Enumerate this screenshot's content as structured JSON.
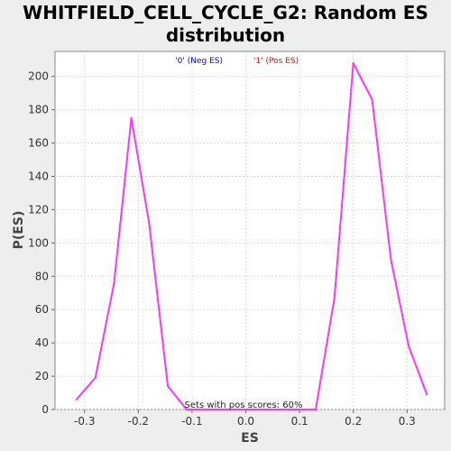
{
  "chart_data": {
    "type": "line",
    "title_line1": "WHITFIELD_CELL_CYCLE_G2: Random ES",
    "title_line2": "distribution",
    "xlabel": "ES",
    "ylabel": "P(ES)",
    "xlim": [
      -0.355,
      0.37
    ],
    "ylim": [
      0,
      215
    ],
    "x_ticks": [
      -0.3,
      -0.2,
      -0.1,
      0.0,
      0.1,
      0.2,
      0.3
    ],
    "x_tick_labels": [
      "-0.3",
      "-0.2",
      "-0.1",
      "0.0",
      "0.1",
      "0.2",
      "0.3"
    ],
    "y_ticks": [
      0,
      20,
      40,
      60,
      80,
      100,
      120,
      140,
      160,
      180,
      200
    ],
    "y_tick_labels": [
      "0",
      "20",
      "40",
      "60",
      "80",
      "100",
      "120",
      "140",
      "160",
      "180",
      "200"
    ],
    "grid": true,
    "legend": [
      {
        "label": "'0' (Neg ES)",
        "color": "#0000ff"
      },
      {
        "label": "'1' (Pos ES)",
        "color": "#ff0000"
      }
    ],
    "legend_placement": "top-center",
    "annotation": "Sets with pos scores: 60%",
    "series": [
      {
        "color": "#ff33ff",
        "x": [
          -0.315,
          -0.28,
          -0.245,
          -0.213,
          -0.18,
          -0.145,
          -0.11,
          0.13,
          0.165,
          0.2,
          0.235,
          0.27,
          0.303,
          0.337
        ],
        "y": [
          6,
          19,
          76,
          175,
          112,
          14,
          0,
          0,
          67,
          208,
          186,
          90,
          38,
          9
        ]
      }
    ]
  }
}
